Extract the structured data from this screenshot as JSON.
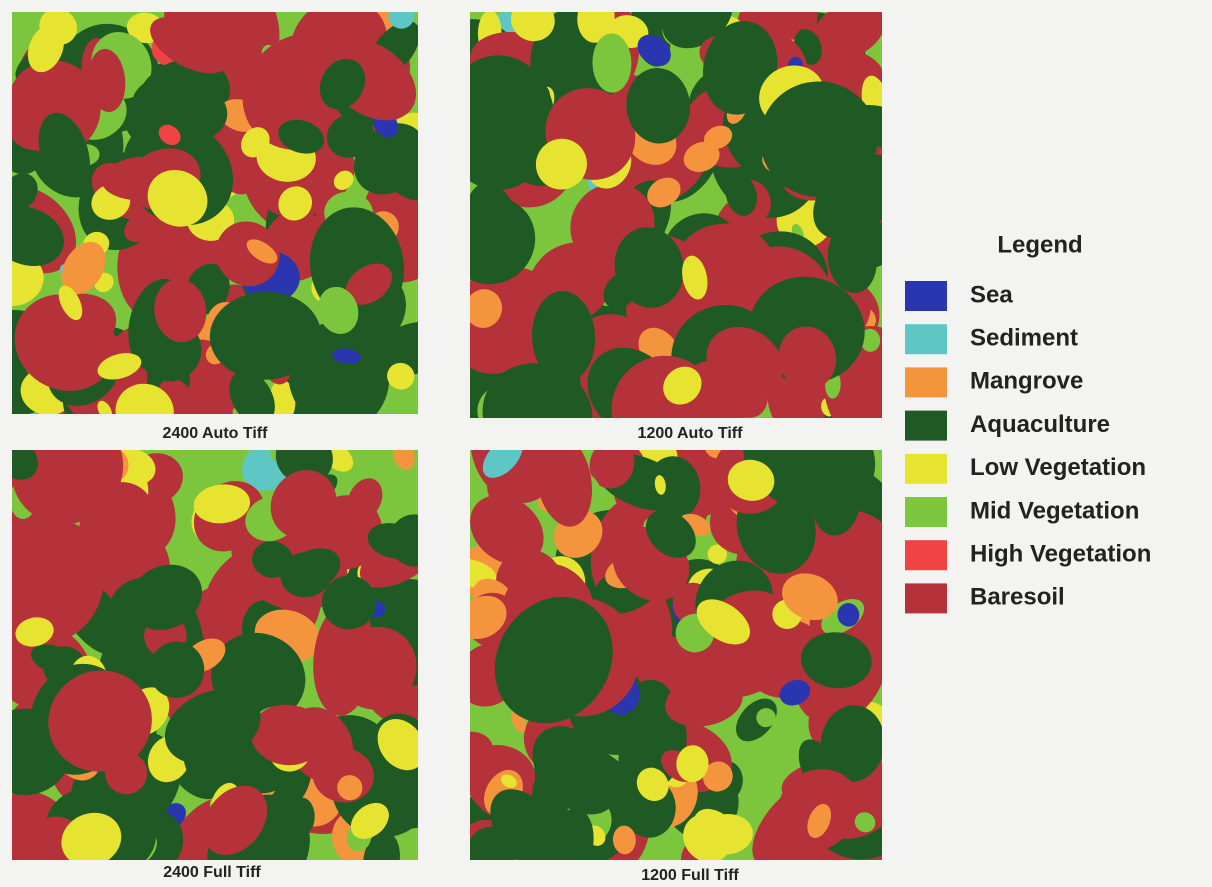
{
  "panels": [
    {
      "caption": "2400 Auto Tiff"
    },
    {
      "caption": "1200 Auto Tiff"
    },
    {
      "caption": "2400 Full Tiff"
    },
    {
      "caption": "1200 Full Tiff"
    }
  ],
  "legend": {
    "title": "Legend",
    "items": [
      {
        "label": "Sea",
        "color": "#2a36b0"
      },
      {
        "label": "Sediment",
        "color": "#5ec6c4"
      },
      {
        "label": "Mangrove",
        "color": "#f4953e"
      },
      {
        "label": "Aquaculture",
        "color": "#1f5a24"
      },
      {
        "label": "Low Vegetation",
        "color": "#e6e431"
      },
      {
        "label": "Mid Vegetation",
        "color": "#7cc63e"
      },
      {
        "label": "High Vegetation",
        "color": "#f04444"
      },
      {
        "label": "Baresoil",
        "color": "#b5323a"
      }
    ]
  }
}
